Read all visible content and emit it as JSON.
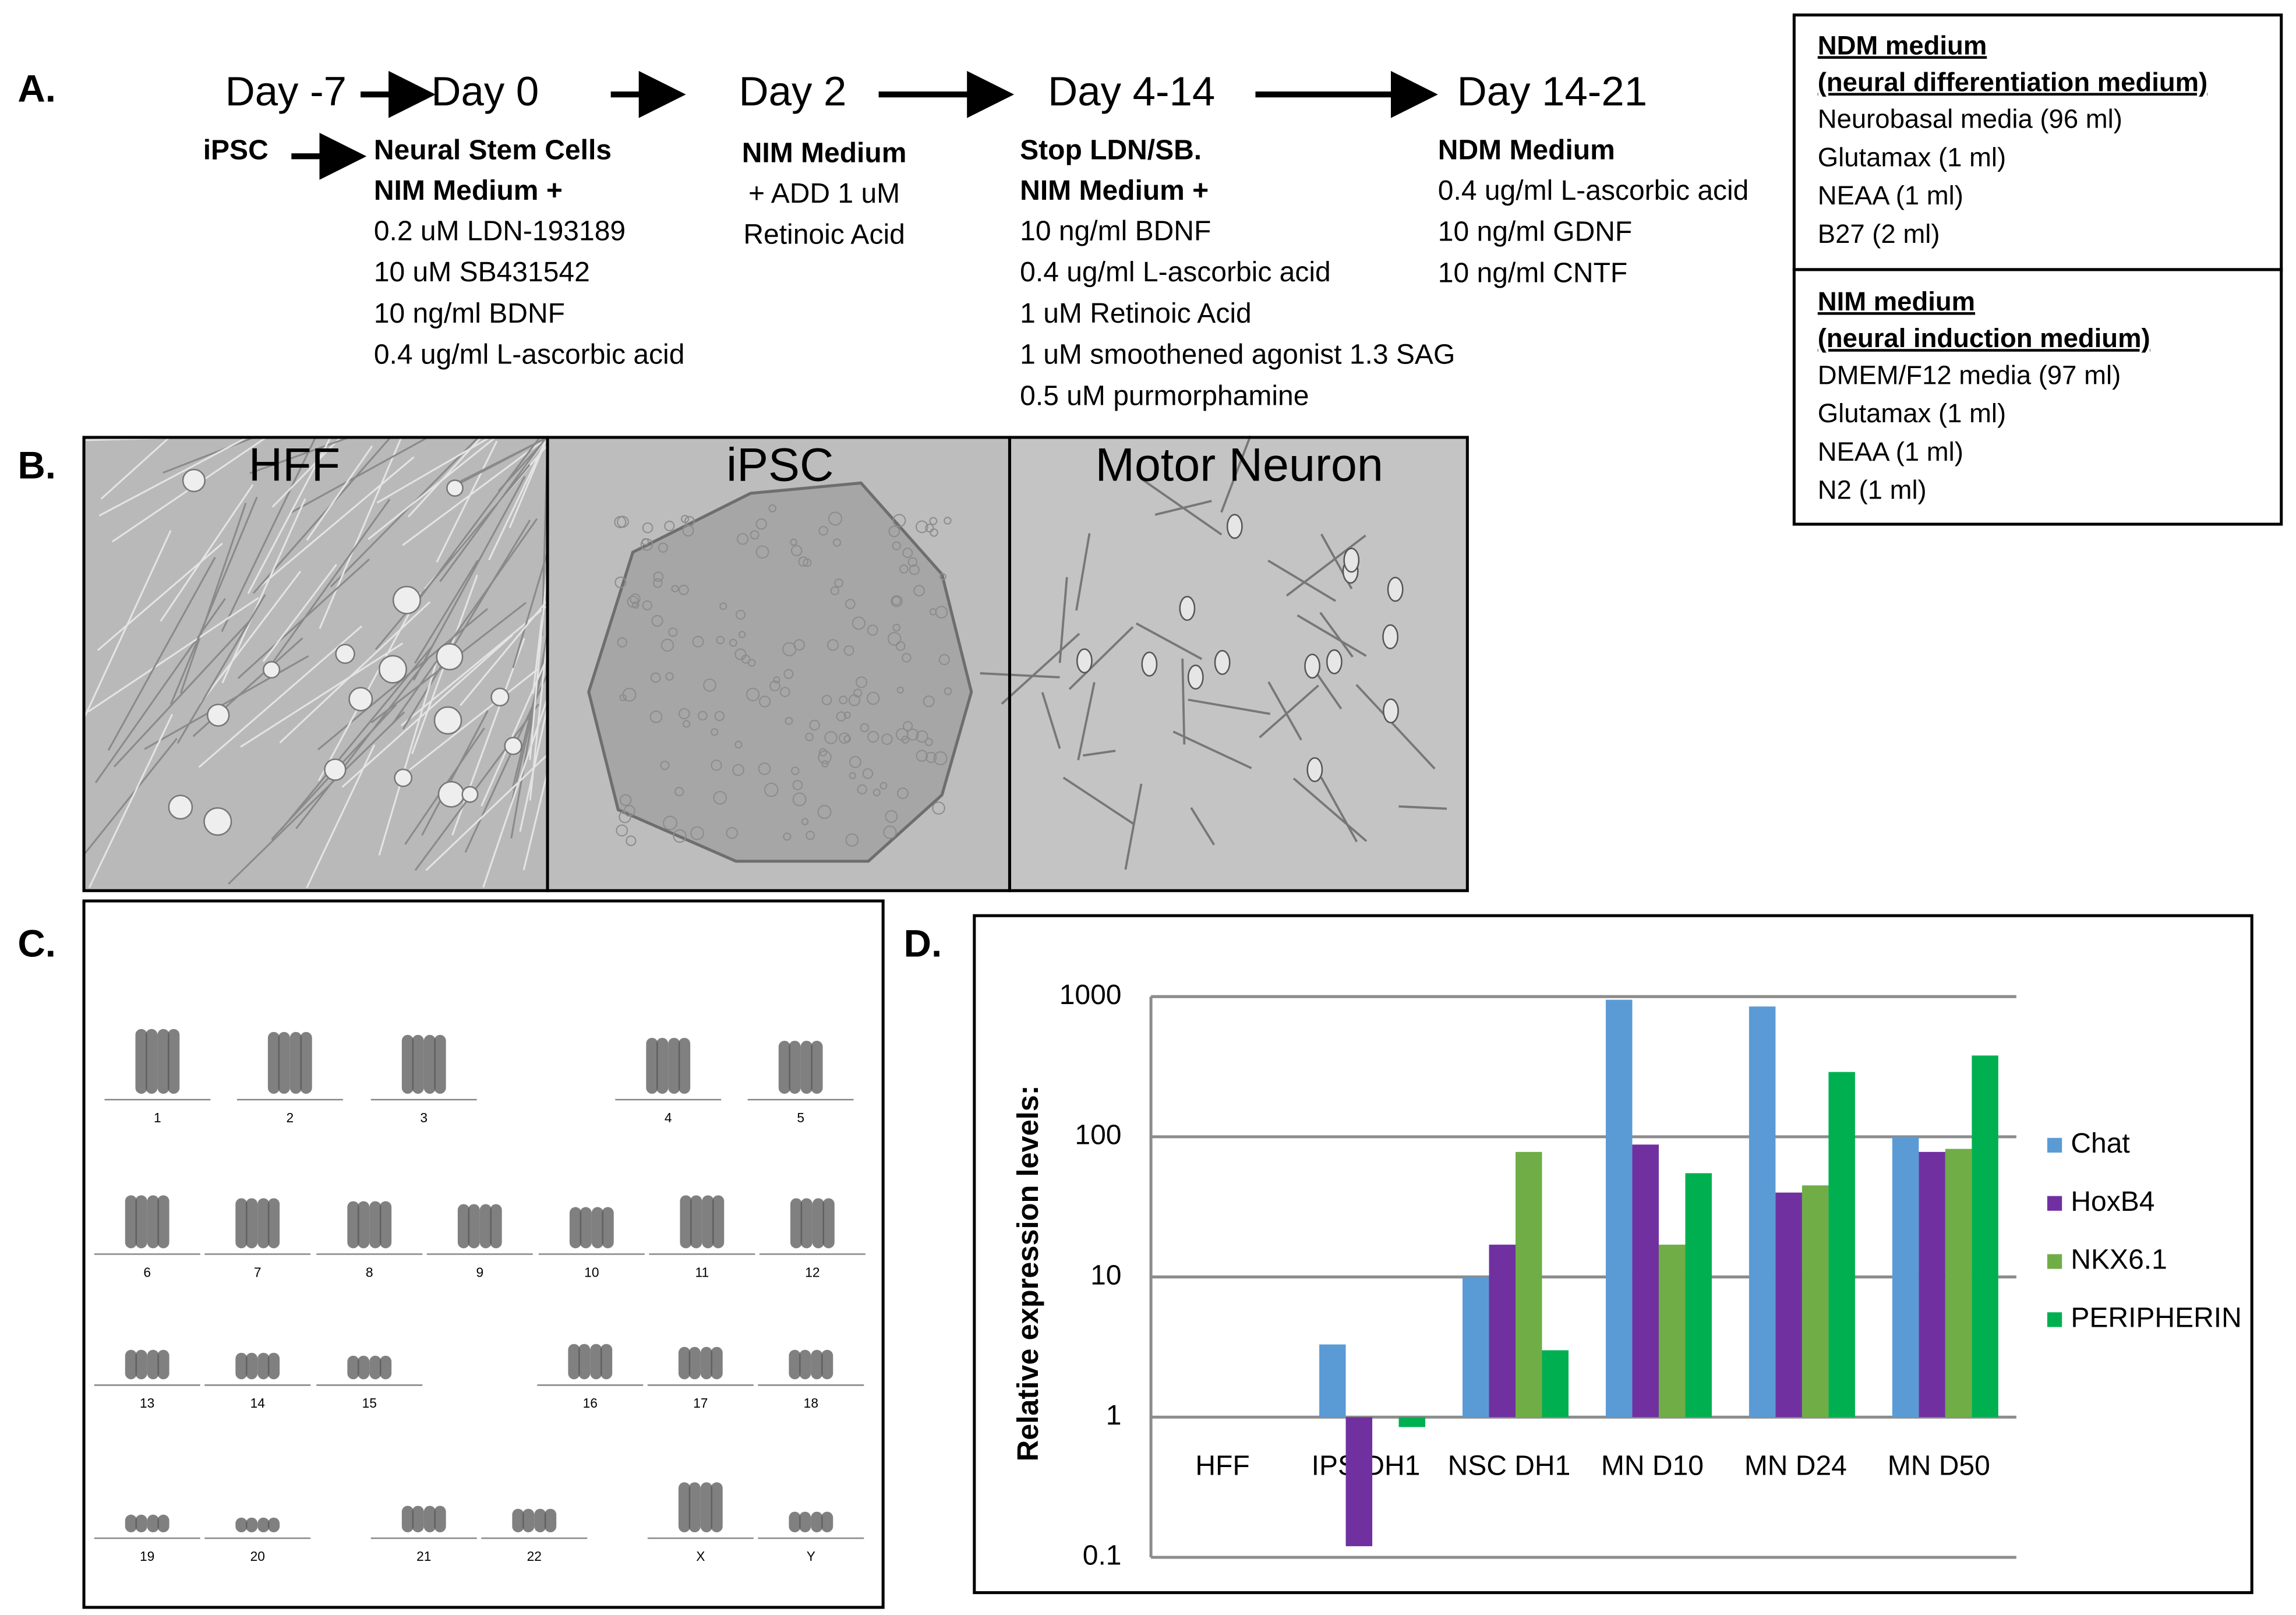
{
  "panel_labels": [
    "A.",
    "B.",
    "C.",
    "D."
  ],
  "timeline": {
    "days": [
      "Day -7",
      "Day  0",
      "Day 2",
      "Day 4-14",
      "Day 14-21"
    ],
    "start": "iPSC",
    "steps": [
      {
        "bold": [
          "Neural Stem Cells",
          "NIM Medium +"
        ],
        "lines": [
          "0.2 uM LDN-193189",
          "10 uM SB431542",
          "10 ng/ml BDNF",
          "0.4 ug/ml L-ascorbic acid"
        ]
      },
      {
        "bold": [
          "NIM Medium"
        ],
        "lines": [
          "+ ADD 1 uM",
          "Retinoic Acid"
        ]
      },
      {
        "bold": [
          "Stop LDN/SB.",
          "NIM Medium +"
        ],
        "lines": [
          "10 ng/ml BDNF",
          "0.4 ug/ml L-ascorbic acid",
          "1 uM Retinoic Acid",
          "1 uM smoothened agonist 1.3 SAG",
          "0.5 uM purmorphamine"
        ]
      },
      {
        "bold": [
          "NDM  Medium"
        ],
        "lines": [
          "0.4 ug/ml L-ascorbic acid",
          "10 ng/ml GDNF",
          "10 ng/ml CNTF"
        ]
      }
    ]
  },
  "media": [
    {
      "title": [
        "NDM medium",
        "(neural differentiation medium)"
      ],
      "items": [
        "Neurobasal media (96 ml)",
        "Glutamax (1 ml)",
        "NEAA (1 ml)",
        "B27 (2 ml)"
      ]
    },
    {
      "title": [
        "NIM medium",
        "(neural induction medium)"
      ],
      "items": [
        "DMEM/F12 media (97 ml)",
        "Glutamax (1 ml)",
        "NEAA (1 ml)",
        "N2 (1 ml)"
      ]
    }
  ],
  "images": [
    "HFF",
    "iPSC",
    "Motor Neuron"
  ],
  "karyotype": [
    "1",
    "2",
    "3",
    "4",
    "5",
    "6",
    "7",
    "8",
    "9",
    "10",
    "11",
    "12",
    "13",
    "14",
    "15",
    "16",
    "17",
    "18",
    "19",
    "20",
    "21",
    "22",
    "X",
    "Y"
  ],
  "chart_data": {
    "type": "bar",
    "y_label": "Relative expression levels:",
    "log_scale": true,
    "grid": true,
    "legend": "right",
    "categories": [
      "HFF",
      "IPS DH1",
      "NSC DH1",
      "MN D10",
      "MN D24",
      "MN D50"
    ],
    "series": [
      {
        "name": "Chat",
        "color": "#5b9bd5",
        "values": [
          1,
          3.3,
          10,
          950,
          850,
          100
        ]
      },
      {
        "name": "HoxB4",
        "color": "#7030a0",
        "values": [
          1,
          0.12,
          17,
          88,
          40,
          78
        ]
      },
      {
        "name": "NKX6.1",
        "color": "#70ad47",
        "values": [
          1,
          1,
          78,
          17,
          45,
          82
        ]
      },
      {
        "name": "PERIPHERIN",
        "color": "#00b050",
        "values": [
          1,
          0.85,
          3,
          55,
          290,
          380
        ]
      }
    ],
    "ylim": [
      0.1,
      1000
    ],
    "yticks": [
      0.1,
      1,
      10,
      100,
      1000
    ]
  }
}
